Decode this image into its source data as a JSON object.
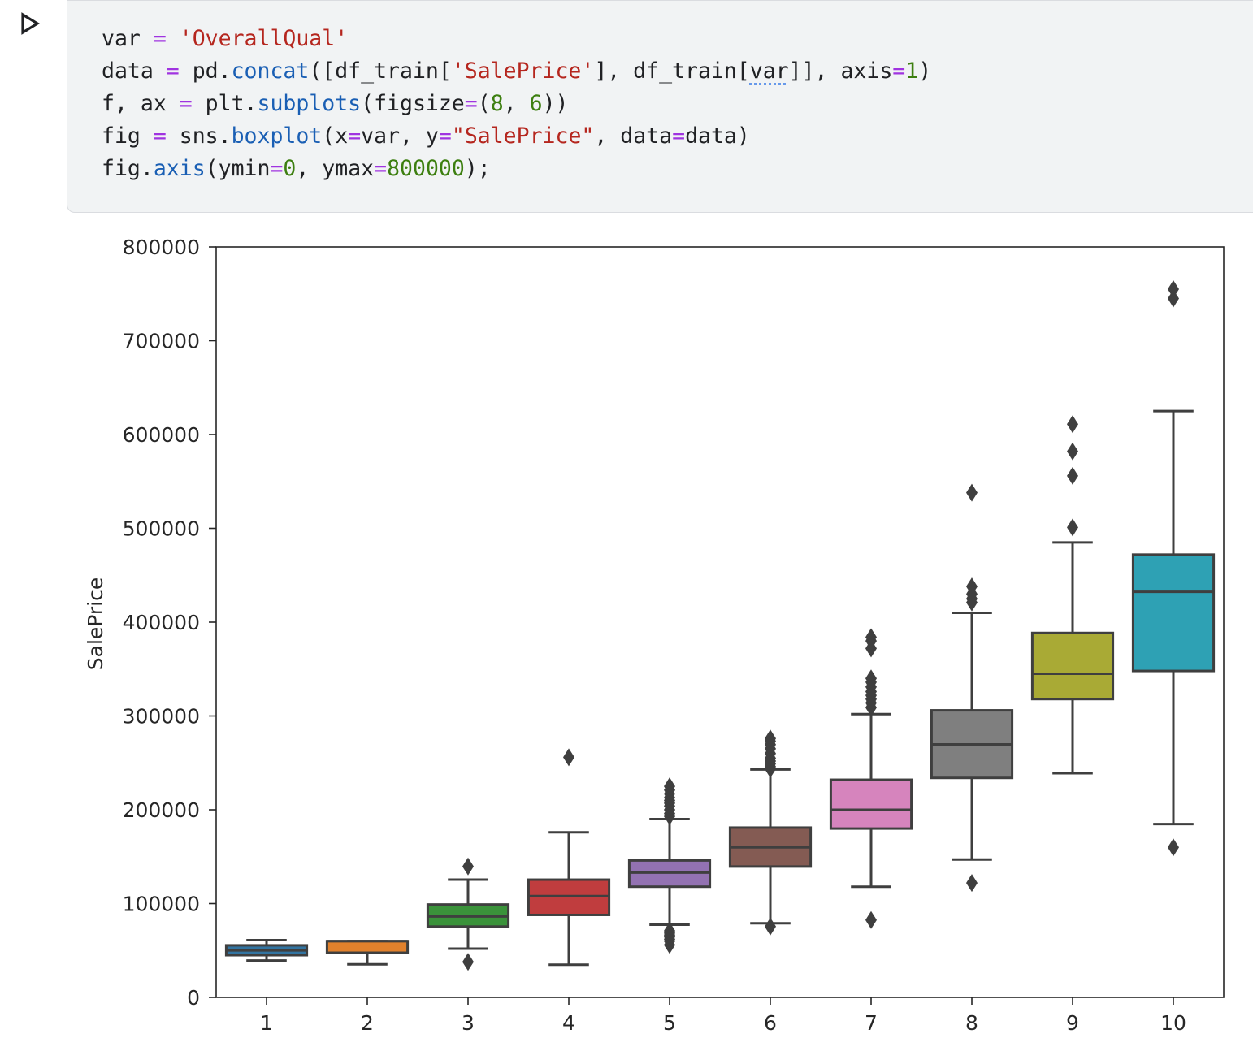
{
  "cell": {
    "run_icon": "play-triangle-icon",
    "code_lines": [
      [
        {
          "t": "var ",
          "c": ""
        },
        {
          "t": "=",
          "c": "op"
        },
        {
          "t": " ",
          "c": ""
        },
        {
          "t": "'OverallQual'",
          "c": "str"
        }
      ],
      [
        {
          "t": "data ",
          "c": ""
        },
        {
          "t": "=",
          "c": "op"
        },
        {
          "t": " pd.",
          "c": ""
        },
        {
          "t": "concat",
          "c": "fn"
        },
        {
          "t": "([df_train[",
          "c": ""
        },
        {
          "t": "'SalePrice'",
          "c": "str"
        },
        {
          "t": "], df_train[",
          "c": ""
        },
        {
          "t": "var",
          "c": "ul"
        },
        {
          "t": "]], axis",
          "c": ""
        },
        {
          "t": "=",
          "c": "op"
        },
        {
          "t": "1",
          "c": "num"
        },
        {
          "t": ")",
          "c": ""
        }
      ],
      [
        {
          "t": "f, ax ",
          "c": ""
        },
        {
          "t": "=",
          "c": "op"
        },
        {
          "t": " plt.",
          "c": ""
        },
        {
          "t": "subplots",
          "c": "fn"
        },
        {
          "t": "(figsize",
          "c": ""
        },
        {
          "t": "=",
          "c": "op"
        },
        {
          "t": "(",
          "c": ""
        },
        {
          "t": "8",
          "c": "num"
        },
        {
          "t": ", ",
          "c": ""
        },
        {
          "t": "6",
          "c": "num"
        },
        {
          "t": "))",
          "c": ""
        }
      ],
      [
        {
          "t": "fig ",
          "c": ""
        },
        {
          "t": "=",
          "c": "op"
        },
        {
          "t": " sns.",
          "c": ""
        },
        {
          "t": "boxplot",
          "c": "fn"
        },
        {
          "t": "(x",
          "c": ""
        },
        {
          "t": "=",
          "c": "op"
        },
        {
          "t": "var, y",
          "c": ""
        },
        {
          "t": "=",
          "c": "op"
        },
        {
          "t": "\"SalePrice\"",
          "c": "str"
        },
        {
          "t": ", data",
          "c": ""
        },
        {
          "t": "=",
          "c": "op"
        },
        {
          "t": "data)",
          "c": ""
        }
      ],
      [
        {
          "t": "fig.",
          "c": ""
        },
        {
          "t": "axis",
          "c": "fn"
        },
        {
          "t": "(ymin",
          "c": ""
        },
        {
          "t": "=",
          "c": "op"
        },
        {
          "t": "0",
          "c": "num"
        },
        {
          "t": ", ymax",
          "c": ""
        },
        {
          "t": "=",
          "c": "op"
        },
        {
          "t": "800000",
          "c": "num"
        },
        {
          "t": ");",
          "c": ""
        }
      ]
    ]
  },
  "chart_data": {
    "type": "box",
    "title": "",
    "xlabel": "",
    "ylabel": "SalePrice",
    "ylim": [
      0,
      800000
    ],
    "yticks": [
      0,
      100000,
      200000,
      300000,
      400000,
      500000,
      600000,
      700000,
      800000
    ],
    "ytick_labels": [
      "0",
      "100000",
      "200000",
      "300000",
      "400000",
      "500000",
      "600000",
      "700000",
      "800000"
    ],
    "grid": false,
    "categories": [
      "1",
      "2",
      "3",
      "4",
      "5",
      "6",
      "7",
      "8",
      "9",
      "10"
    ],
    "boxes": [
      {
        "category": "1",
        "whisker_low": 39300,
        "q1": 45000,
        "median": 50150,
        "q3": 55500,
        "whisker_high": 61000,
        "outliers": [],
        "color": "#3274a1"
      },
      {
        "category": "2",
        "whisker_low": 35300,
        "q1": 47600,
        "median": 60000,
        "q3": 60000,
        "whisker_high": 60000,
        "outliers": [],
        "color": "#e1812c"
      },
      {
        "category": "3",
        "whisker_low": 52000,
        "q1": 75500,
        "median": 86250,
        "q3": 99000,
        "whisker_high": 125500,
        "outliers": [
          37900,
          139600
        ],
        "color": "#3a923a"
      },
      {
        "category": "4",
        "whisker_low": 34900,
        "q1": 87900,
        "median": 108000,
        "q3": 125500,
        "whisker_high": 176000,
        "outliers": [
          256000
        ],
        "color": "#c03d3e"
      },
      {
        "category": "5",
        "whisker_low": 77500,
        "q1": 118000,
        "median": 133000,
        "q3": 146000,
        "whisker_high": 190000,
        "outliers": [
          56000,
          60000,
          62000,
          64500,
          66500,
          68500,
          71000,
          193000,
          196000,
          200000,
          204000,
          207000,
          210000,
          213000,
          217000,
          221000,
          225000
        ],
        "color": "#9372b2"
      },
      {
        "category": "6",
        "whisker_low": 79000,
        "q1": 139500,
        "median": 160000,
        "q3": 181000,
        "whisker_high": 243000,
        "outliers": [
          75500,
          243500,
          246000,
          249000,
          252000,
          255000,
          260000,
          265000,
          269500,
          273000,
          276000
        ],
        "color": "#845b53"
      },
      {
        "category": "7",
        "whisker_low": 118000,
        "q1": 180000,
        "median": 200000,
        "q3": 232000,
        "whisker_high": 302000,
        "outliers": [
          82500,
          309000,
          314000,
          318000,
          322000,
          326000,
          331000,
          336000,
          340000,
          372000,
          380000,
          384000
        ],
        "color": "#d684bd"
      },
      {
        "category": "8",
        "whisker_low": 147000,
        "q1": 234000,
        "median": 269750,
        "q3": 306000,
        "whisker_high": 410000,
        "outliers": [
          122000,
          421000,
          425000,
          430000,
          438000,
          538000
        ],
        "color": "#7f7f7f"
      },
      {
        "category": "9",
        "whisker_low": 239000,
        "q1": 318000,
        "median": 345000,
        "q3": 388500,
        "whisker_high": 485000,
        "outliers": [
          501000,
          556000,
          582000,
          611000
        ],
        "color": "#a9aa35"
      },
      {
        "category": "10",
        "whisker_low": 184750,
        "q1": 348000,
        "median": 432390,
        "q3": 472000,
        "whisker_high": 625000,
        "outliers": [
          160000,
          745000,
          755000
        ],
        "color": "#2ea1b4"
      }
    ]
  }
}
